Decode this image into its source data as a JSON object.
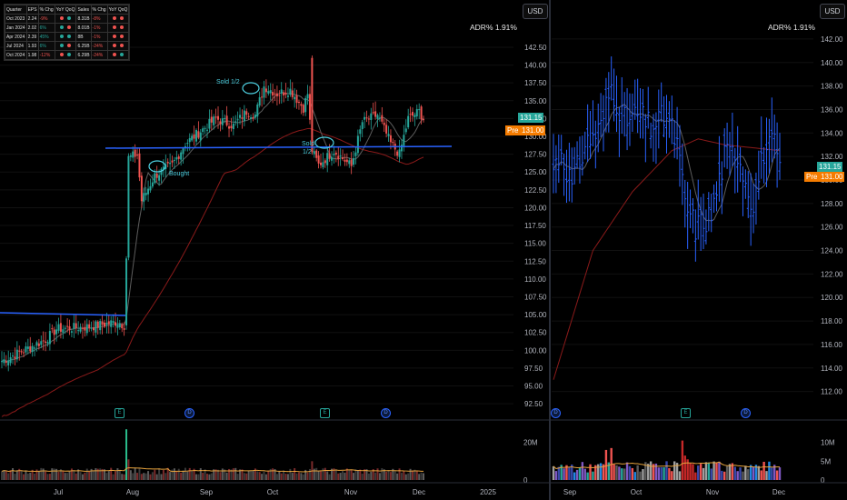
{
  "earnings_table": {
    "headers": [
      "Quarter",
      "EPS",
      "% Chg",
      "YoY QoQ",
      "Sales",
      "% Chg",
      "YoY QoQ"
    ],
    "rows": [
      {
        "q": "Oct 2023",
        "eps": "2.24",
        "eps_chg": "-9%",
        "sales": "8.31B",
        "sales_chg": "-8%",
        "eps_yoy": "red",
        "eps_qoq": "green",
        "sales_yoy": "red",
        "sales_qoq": "red"
      },
      {
        "q": "Jan 2024",
        "eps": "2.02",
        "eps_chg": "6%",
        "sales": "8.01B",
        "sales_chg": "-1%",
        "eps_yoy": "green",
        "eps_qoq": "red",
        "sales_yoy": "red",
        "sales_qoq": "red"
      },
      {
        "q": "Apr 2024",
        "eps": "2.39",
        "eps_chg": "45%",
        "sales": "8B",
        "sales_chg": "-1%",
        "eps_yoy": "green",
        "eps_qoq": "green",
        "sales_yoy": "red",
        "sales_qoq": "red"
      },
      {
        "q": "Jul 2024",
        "eps": "1.93",
        "eps_chg": "6%",
        "sales": "6.25B",
        "sales_chg": "-24%",
        "eps_yoy": "green",
        "eps_qoq": "red",
        "sales_yoy": "red",
        "sales_qoq": "red"
      },
      {
        "q": "Oct 2024",
        "eps": "1.98",
        "eps_chg": "-12%",
        "sales": "6.29B",
        "sales_chg": "-24%",
        "eps_yoy": "red",
        "eps_qoq": "green",
        "sales_yoy": "red",
        "sales_qoq": "green"
      }
    ]
  },
  "left_panel": {
    "currency": "USD",
    "adr": "ADR% 1.91%",
    "last_price": "131.15",
    "pre_label": "Pre",
    "pre_price": "131.00"
  },
  "right_panel": {
    "currency": "USD",
    "adr": "ADR% 1.91%",
    "last_price": "131.15",
    "pre_label": "Pre",
    "pre_price": "131.00"
  },
  "annotations": {
    "sold_top": "Sold 1/2",
    "bought": "Bought",
    "sold_bottom_1": "Sold",
    "sold_bottom_2": "1/2"
  },
  "events": {
    "earnings": "E",
    "dividend": "D"
  },
  "colors": {
    "up": "#26a69a",
    "down": "#ef5350",
    "bar_right": "#2962ff",
    "trendline": "#2962ff",
    "ma_fast": "#5d5d5d",
    "ma_slow": "#8b1a1a",
    "volume_ma": "#e6a23c",
    "background": "#000000"
  },
  "chart_data": [
    {
      "type": "candlestick",
      "title": "",
      "x_ticks": [
        "Jul",
        "Aug",
        "Sep",
        "Oct",
        "Nov",
        "Dec",
        "2025"
      ],
      "y_ticks": [
        92.5,
        95.0,
        97.5,
        100.0,
        102.5,
        105.0,
        107.5,
        110.0,
        112.5,
        115.0,
        117.5,
        120.0,
        122.5,
        125.0,
        127.5,
        130.0,
        132.5,
        135.0,
        137.5,
        140.0,
        142.5
      ],
      "ylim": [
        91.5,
        145.3
      ],
      "anchors": [
        [
          0,
          98.5
        ],
        [
          20,
          101.5
        ],
        [
          25,
          103
        ],
        [
          40,
          103.3
        ],
        [
          53,
          104
        ],
        [
          56,
          103.5
        ],
        [
          57,
          113
        ],
        [
          58,
          127
        ],
        [
          62,
          127.5
        ],
        [
          64,
          121
        ],
        [
          70,
          124.5
        ],
        [
          78,
          126
        ],
        [
          84,
          129
        ],
        [
          90,
          130.5
        ],
        [
          98,
          132.5
        ],
        [
          106,
          131.5
        ],
        [
          112,
          133.5
        ],
        [
          116,
          133
        ],
        [
          120,
          137
        ],
        [
          126,
          136
        ],
        [
          132,
          136.5
        ],
        [
          138,
          134
        ],
        [
          140,
          136
        ],
        [
          142,
          128
        ],
        [
          145,
          126
        ],
        [
          152,
          128
        ],
        [
          160,
          125.8
        ],
        [
          165,
          132
        ],
        [
          172,
          133
        ],
        [
          178,
          129
        ],
        [
          182,
          127.5
        ],
        [
          186,
          132.5
        ],
        [
          191,
          133.5
        ],
        [
          193,
          132.5
        ]
      ],
      "volume_axis_ticks": [
        "0",
        "20M"
      ],
      "volume_ylim": [
        0,
        30
      ]
    },
    {
      "type": "ohlc",
      "title": "",
      "x_ticks": [
        "Sep",
        "Oct",
        "Nov",
        "Dec"
      ],
      "y_ticks": [
        112.0,
        114.0,
        116.0,
        118.0,
        120.0,
        122.0,
        124.0,
        126.0,
        128.0,
        130.0,
        132.0,
        134.0,
        136.0,
        138.0,
        140.0,
        142.0
      ],
      "ylim": [
        110.5,
        143.0
      ],
      "anchors": [
        [
          0,
          131
        ],
        [
          3,
          132.5
        ],
        [
          7,
          129.5
        ],
        [
          12,
          133
        ],
        [
          18,
          134.5
        ],
        [
          22,
          138
        ],
        [
          27,
          135
        ],
        [
          32,
          135.5
        ],
        [
          37,
          134.5
        ],
        [
          43,
          135.5
        ],
        [
          47,
          133
        ],
        [
          50,
          128
        ],
        [
          54,
          126
        ],
        [
          60,
          127
        ],
        [
          65,
          132
        ],
        [
          70,
          132.5
        ],
        [
          73,
          130
        ],
        [
          76,
          128
        ],
        [
          80,
          132.5
        ],
        [
          84,
          133
        ],
        [
          86,
          131
        ]
      ],
      "volume_axis_ticks": [
        "0",
        "5M",
        "10M"
      ],
      "volume_ylim": [
        0,
        15
      ]
    }
  ]
}
